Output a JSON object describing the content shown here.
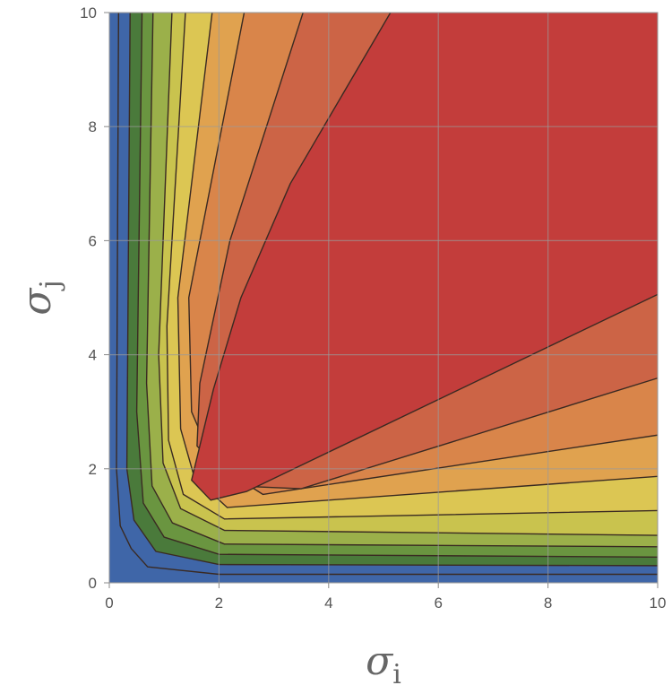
{
  "chart_data": {
    "type": "contour",
    "xlabel": "σ",
    "xlabel_subscript": "i",
    "ylabel": "σ",
    "ylabel_subscript": "j",
    "xlim": [
      0,
      10
    ],
    "ylim": [
      0,
      10
    ],
    "x_ticks": [
      0,
      2,
      4,
      6,
      8,
      10
    ],
    "y_ticks": [
      0,
      2,
      4,
      6,
      8,
      10
    ],
    "grid": true,
    "legend": "none",
    "level_colors": [
      "#3f66a8",
      "#4a7a3b",
      "#6a9540",
      "#9bb04a",
      "#c9c34e",
      "#dcc653",
      "#e0a24f",
      "#d9854a",
      "#cc6446",
      "#c33d3b"
    ]
  }
}
